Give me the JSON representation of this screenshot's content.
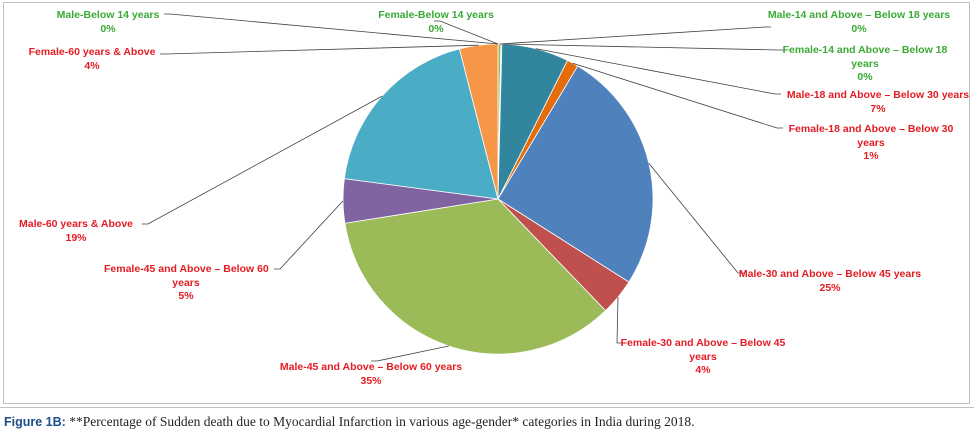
{
  "chart_data": {
    "type": "pie",
    "title": "",
    "slices": [
      {
        "name": "Male-Below 14 years",
        "value": 0,
        "pct": "0%",
        "color": "#4f81bd",
        "label_color": "#3aa935"
      },
      {
        "name": "Female-Below 14 years",
        "value": 0,
        "pct": "0%",
        "color": "#c0504d",
        "label_color": "#3aa935"
      },
      {
        "name": "Male-14 and Above – Below 18 years",
        "value": 0.3,
        "pct": "0%",
        "color": "#9bbb59",
        "label_color": "#3aa935"
      },
      {
        "name": "Female-14 and Above – Below 18 years",
        "value": 0.1,
        "pct": "0%",
        "color": "#8064a2",
        "label_color": "#3aa935"
      },
      {
        "name": "Male-18 and Above – Below 30 years",
        "value": 7,
        "pct": "7%",
        "color": "#31859c",
        "label_color": "#e31c23"
      },
      {
        "name": "Female-18 and Above – Below 30 years",
        "value": 1.2,
        "pct": "1%",
        "color": "#e46c0a",
        "label_color": "#e31c23"
      },
      {
        "name": "Male-30 and Above – Below 45 years",
        "value": 25.4,
        "pct": "25%",
        "color": "#4f81bd",
        "label_color": "#e31c23"
      },
      {
        "name": "Female-30 and Above – Below 45 years",
        "value": 3.8,
        "pct": "4%",
        "color": "#c0504d",
        "label_color": "#e31c23"
      },
      {
        "name": "Male-45 and Above – Below 60 years",
        "value": 34.7,
        "pct": "35%",
        "color": "#9bbb59",
        "label_color": "#e31c23"
      },
      {
        "name": "Female-45 and Above – Below 60 years",
        "value": 4.6,
        "pct": "5%",
        "color": "#8064a2",
        "label_color": "#e31c23"
      },
      {
        "name": "Male-60 years & Above",
        "value": 18.9,
        "pct": "19%",
        "color": "#4bacc6",
        "label_color": "#e31c23"
      },
      {
        "name": "Female-60 years & Above",
        "value": 4,
        "pct": "4%",
        "color": "#f79646",
        "label_color": "#e31c23"
      }
    ],
    "legend": "none"
  },
  "labels": [
    {
      "lines": [
        "Male-Below 14 years"
      ],
      "pct": "0%",
      "color": "#3aa935"
    },
    {
      "lines": [
        "Female-Below 14 years"
      ],
      "pct": "0%",
      "color": "#3aa935"
    },
    {
      "lines": [
        "Male-14 and Above – Below 18 years"
      ],
      "pct": "0%",
      "color": "#3aa935"
    },
    {
      "lines": [
        "Female-14 and Above – Below 18",
        "years"
      ],
      "pct": "0%",
      "color": "#3aa935"
    },
    {
      "lines": [
        "Male-18 and Above – Below 30 years"
      ],
      "pct": "7%",
      "color": "#e31c23"
    },
    {
      "lines": [
        "Female-18 and Above – Below 30",
        "years"
      ],
      "pct": "1%",
      "color": "#e31c23"
    },
    {
      "lines": [
        "Male-30 and Above – Below 45 years"
      ],
      "pct": "25%",
      "color": "#e31c23"
    },
    {
      "lines": [
        "Female-30 and Above – Below 45",
        "years"
      ],
      "pct": "4%",
      "color": "#e31c23"
    },
    {
      "lines": [
        "Male-45 and Above – Below 60 years"
      ],
      "pct": "35%",
      "color": "#e31c23"
    },
    {
      "lines": [
        "Female-45 and Above – Below 60",
        "years"
      ],
      "pct": "5%",
      "color": "#e31c23"
    },
    {
      "lines": [
        "Male-60 years & Above"
      ],
      "pct": "19%",
      "color": "#e31c23"
    },
    {
      "lines": [
        "Female-60 years & Above"
      ],
      "pct": "4%",
      "color": "#e31c23"
    }
  ],
  "caption": {
    "figure_label": "Figure 1B:",
    "text": " **Percentage of Sudden death due to Myocardial Infarction in various age-gender* categories in India during 2018."
  }
}
